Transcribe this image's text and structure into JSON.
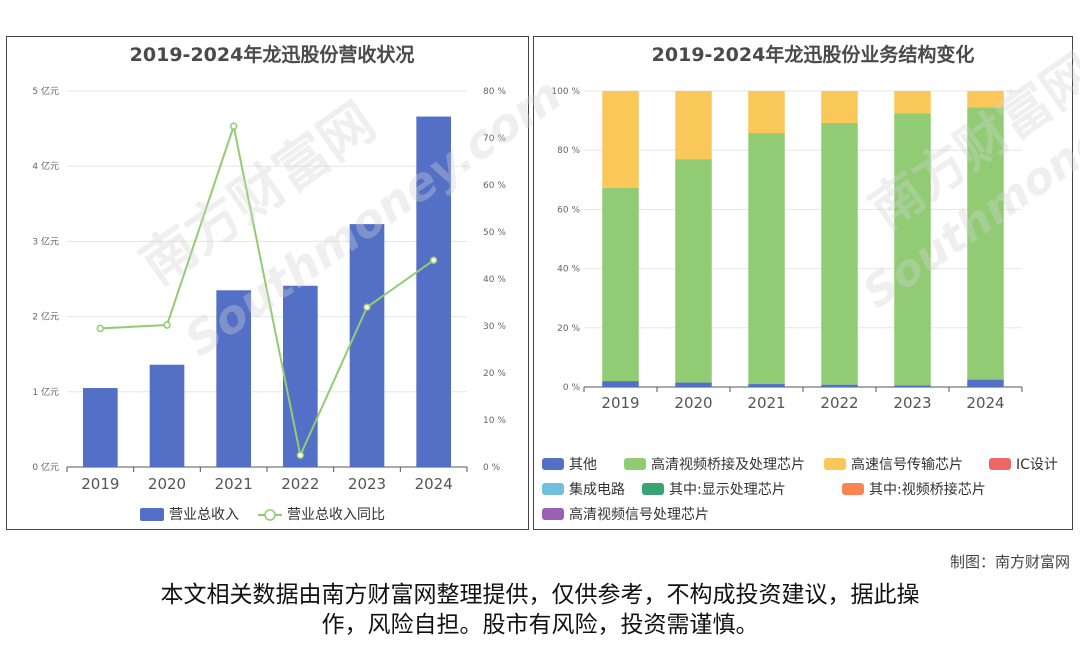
{
  "credit": "制图：南方财富网",
  "disclaimer": {
    "line1": "本文相关数据由南方财富网整理提供，仅供参考，不构成投资建议，据此操",
    "line2": "作，风险自担。股市有风险，投资需谨慎。"
  },
  "watermark": {
    "cn": "南方财富网",
    "en": "Southmoney.com"
  },
  "chart_data": [
    {
      "type": "bar",
      "title": "2019-2024年龙迅股份营收状况",
      "categories": [
        "2019",
        "2020",
        "2021",
        "2022",
        "2023",
        "2024"
      ],
      "series": [
        {
          "name": "营业总收入",
          "type": "bar",
          "axis": "left",
          "color": "#5470c6",
          "values": [
            1.05,
            1.36,
            2.35,
            2.41,
            3.23,
            4.66
          ]
        },
        {
          "name": "营业总收入同比",
          "type": "line",
          "axis": "right",
          "color": "#91cc75",
          "values": [
            29.5,
            30.2,
            72.5,
            2.5,
            34.0,
            44.0
          ]
        }
      ],
      "y_left": {
        "min": 0,
        "max": 5,
        "step": 1,
        "ticks": [
          "0 亿元",
          "1 亿元",
          "2 亿元",
          "3 亿元",
          "4 亿元",
          "5 亿元"
        ]
      },
      "y_right": {
        "min": 0,
        "max": 80,
        "step": 10,
        "ticks": [
          "0 %",
          "10 %",
          "20 %",
          "30 %",
          "40 %",
          "50 %",
          "60 %",
          "70 %",
          "80 %"
        ]
      },
      "grid": true,
      "legend_position": "bottom"
    },
    {
      "type": "bar",
      "stacked": true,
      "title": "2019-2024年龙迅股份业务结构变化",
      "categories": [
        "2019",
        "2020",
        "2021",
        "2022",
        "2023",
        "2024"
      ],
      "series": [
        {
          "name": "其他",
          "color": "#5470c6",
          "values": [
            2.0,
            1.5,
            1.0,
            0.8,
            0.5,
            2.5
          ]
        },
        {
          "name": "高清视频桥接及处理芯片",
          "color": "#91cc75",
          "values": [
            65.3,
            75.5,
            84.8,
            88.4,
            92.0,
            92.0
          ]
        },
        {
          "name": "高速信号传输芯片",
          "color": "#fac858",
          "values": [
            32.7,
            23.0,
            14.2,
            10.8,
            7.5,
            5.5
          ]
        },
        {
          "name": "IC设计",
          "color": "#ee6666",
          "values": [
            0,
            0,
            0,
            0,
            0,
            0
          ]
        },
        {
          "name": "集成电路",
          "color": "#73c0de",
          "values": [
            0,
            0,
            0,
            0,
            0,
            0
          ]
        },
        {
          "name": "其中:显示处理芯片",
          "color": "#3ba272",
          "values": [
            0,
            0,
            0,
            0,
            0,
            0
          ]
        },
        {
          "name": "其中:视频桥接芯片",
          "color": "#fc8452",
          "values": [
            0,
            0,
            0,
            0,
            0,
            0
          ]
        },
        {
          "name": "高清视频信号处理芯片",
          "color": "#9a60b4",
          "values": [
            0,
            0,
            0,
            0,
            0,
            0
          ]
        }
      ],
      "y_axis": {
        "min": 0,
        "max": 100,
        "step": 20,
        "ticks": [
          "0 %",
          "20 %",
          "40 %",
          "60 %",
          "80 %",
          "100 %"
        ]
      },
      "grid": true,
      "legend_position": "bottom"
    }
  ]
}
